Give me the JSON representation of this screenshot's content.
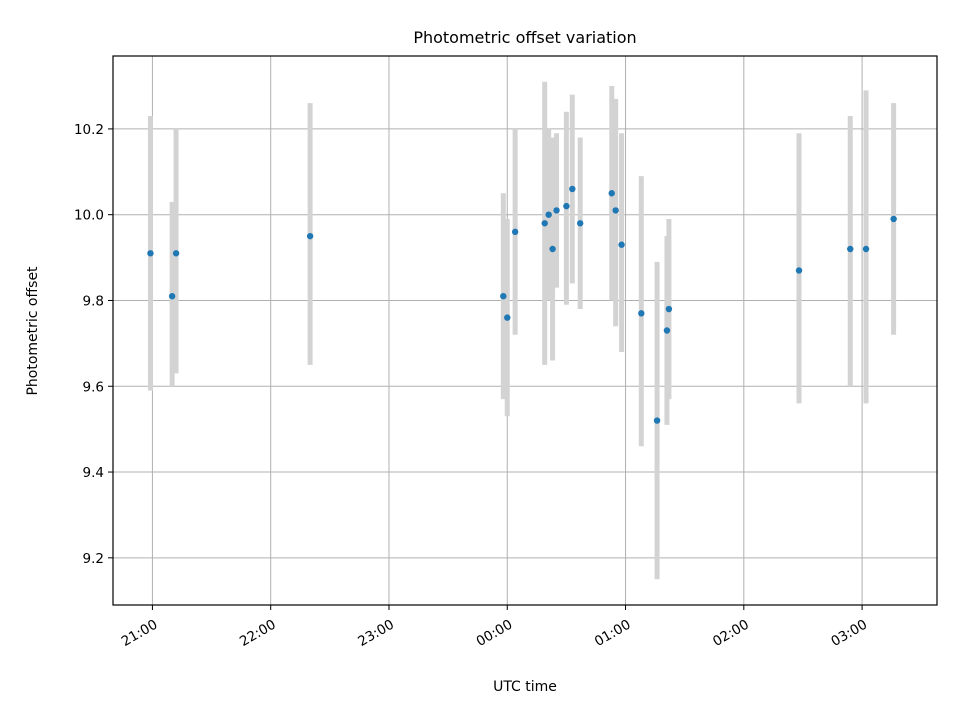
{
  "chart_data": {
    "type": "scatter",
    "title": "Photometric offset variation",
    "xlabel": "UTC time",
    "ylabel": "Photometric offset",
    "grid": true,
    "xlim": [
      "20:40",
      "03:38"
    ],
    "ylim": [
      9.09,
      10.37
    ],
    "x_ticks": [
      "21:00",
      "22:00",
      "23:00",
      "00:00",
      "01:00",
      "02:00",
      "03:00"
    ],
    "y_ticks": [
      "9.2",
      "9.4",
      "9.6",
      "9.8",
      "10.0",
      "10.2"
    ],
    "marker_color": "#1f77b4",
    "errorbar_color": "#d3d3d3",
    "points": [
      {
        "x": "20:59",
        "y": 9.91,
        "ylow": 9.59,
        "yhigh": 10.23
      },
      {
        "x": "21:10",
        "y": 9.81,
        "ylow": 9.6,
        "yhigh": 10.03
      },
      {
        "x": "21:12",
        "y": 9.91,
        "ylow": 9.63,
        "yhigh": 10.2
      },
      {
        "x": "22:20",
        "y": 9.95,
        "ylow": 9.65,
        "yhigh": 10.26
      },
      {
        "x": "23:58",
        "y": 9.81,
        "ylow": 9.57,
        "yhigh": 10.05
      },
      {
        "x": "00:00",
        "y": 9.76,
        "ylow": 9.53,
        "yhigh": 9.99
      },
      {
        "x": "00:04",
        "y": 9.96,
        "ylow": 9.72,
        "yhigh": 10.2
      },
      {
        "x": "00:19",
        "y": 9.98,
        "ylow": 9.65,
        "yhigh": 10.31
      },
      {
        "x": "00:21",
        "y": 10.0,
        "ylow": 9.8,
        "yhigh": 10.2
      },
      {
        "x": "00:23",
        "y": 9.92,
        "ylow": 9.66,
        "yhigh": 10.18
      },
      {
        "x": "00:25",
        "y": 10.01,
        "ylow": 9.83,
        "yhigh": 10.19
      },
      {
        "x": "00:30",
        "y": 10.02,
        "ylow": 9.79,
        "yhigh": 10.24
      },
      {
        "x": "00:33",
        "y": 10.06,
        "ylow": 9.84,
        "yhigh": 10.28
      },
      {
        "x": "00:37",
        "y": 9.98,
        "ylow": 9.78,
        "yhigh": 10.18
      },
      {
        "x": "00:53",
        "y": 10.05,
        "ylow": 9.8,
        "yhigh": 10.3
      },
      {
        "x": "00:55",
        "y": 10.01,
        "ylow": 9.74,
        "yhigh": 10.27
      },
      {
        "x": "00:58",
        "y": 9.93,
        "ylow": 9.68,
        "yhigh": 10.19
      },
      {
        "x": "01:08",
        "y": 9.77,
        "ylow": 9.46,
        "yhigh": 10.09
      },
      {
        "x": "01:16",
        "y": 9.52,
        "ylow": 9.15,
        "yhigh": 9.89
      },
      {
        "x": "01:21",
        "y": 9.73,
        "ylow": 9.51,
        "yhigh": 9.95
      },
      {
        "x": "01:22",
        "y": 9.78,
        "ylow": 9.57,
        "yhigh": 9.99
      },
      {
        "x": "02:28",
        "y": 9.87,
        "ylow": 9.56,
        "yhigh": 10.19
      },
      {
        "x": "02:54",
        "y": 9.92,
        "ylow": 9.6,
        "yhigh": 10.23
      },
      {
        "x": "03:02",
        "y": 9.92,
        "ylow": 9.56,
        "yhigh": 10.29
      },
      {
        "x": "03:16",
        "y": 9.99,
        "ylow": 9.72,
        "yhigh": 10.26
      }
    ]
  }
}
